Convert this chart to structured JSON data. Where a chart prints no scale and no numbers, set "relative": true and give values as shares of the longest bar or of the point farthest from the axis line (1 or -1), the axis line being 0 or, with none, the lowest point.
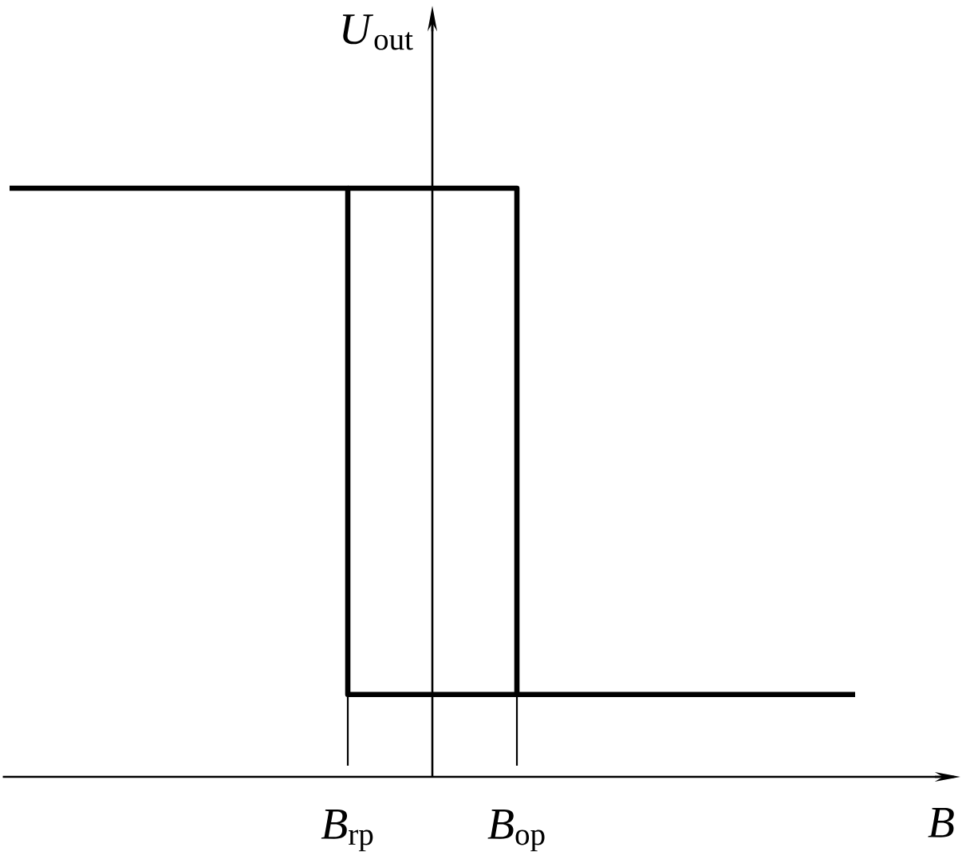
{
  "chart_data": {
    "type": "step",
    "relative": true,
    "xlabel": "B",
    "ylabel": "*U*$_{out}$",
    "categories": [
      null,
      null,
      null,
      null,
      "*B*$_{rp}$",
      null,
      "*B*$_{op}$",
      null,
      null,
      null,
      null
    ],
    "series": [
      {
        "color": "#000000",
        "values": [
          null,
          null,
          null,
          null,
          1,
          1,
          0.14,
          null,
          null,
          null,
          null
        ]
      },
      {
        "color": "#000000",
        "values": [
          1,
          1,
          1,
          1,
          0.14,
          0.14,
          0.14,
          0.14,
          0.14,
          0.14,
          0.14
        ]
      }
    ],
    "ref_lines": [
      {
        "axis": "x",
        "value": "*B*$_{rp}$",
        "color": "#000000"
      },
      {
        "axis": "x",
        "value": "*B*$_{op}$",
        "color": "#000000"
      }
    ],
    "tick_labels": "x",
    "line_style": "solid"
  }
}
